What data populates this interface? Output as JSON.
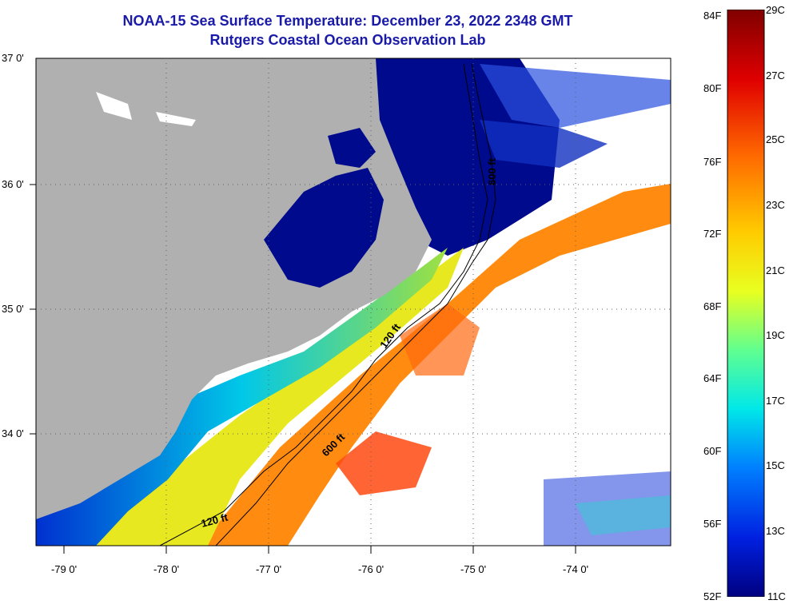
{
  "title": {
    "line1": "NOAA-15 Sea Surface Temperature:  December 23, 2022 2348 GMT",
    "line2": "Rutgers Coastal Ocean Observation Lab"
  },
  "map": {
    "lat_labels": [
      "37 0'",
      "36 0'",
      "35 0'",
      "34 0'"
    ],
    "lon_labels": [
      "-79 0'",
      "-78 0'",
      "-77 0'",
      "-76 0'",
      "-75 0'",
      "-74 0'"
    ],
    "isobaths": [
      {
        "label": "120 ft",
        "depth_ft": 120
      },
      {
        "label": "600 ft",
        "depth_ft": 600
      },
      {
        "label": "600 ft",
        "depth_ft": 600
      },
      {
        "label": "120 ft",
        "depth_ft": 120
      }
    ],
    "colors": {
      "land": "#b0b0b0",
      "cold": "#000a8c",
      "warm": "#ff7a00"
    }
  },
  "colorbar": {
    "fahrenheit": [
      "84F",
      "80F",
      "76F",
      "72F",
      "68F",
      "64F",
      "60F",
      "56F",
      "52F"
    ],
    "celsius": [
      "29C",
      "27C",
      "25C",
      "23C",
      "21C",
      "19C",
      "17C",
      "15C",
      "13C",
      "11C"
    ]
  }
}
